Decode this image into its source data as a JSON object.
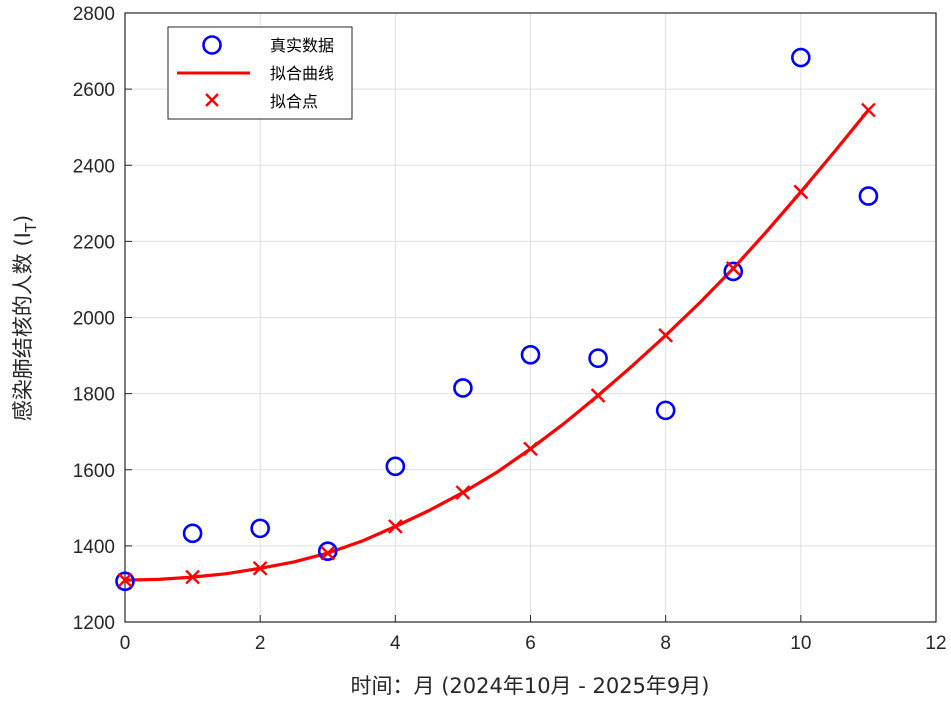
{
  "chart_data": {
    "type": "scatter",
    "xlabel": "时间：月 (2024年10月 -  2025年9月)",
    "ylabel": "感染肺结核的人数 (I",
    "ylabel_subscript": "T",
    "ylabel_suffix": ")",
    "xlim": [
      0,
      12
    ],
    "ylim": [
      1200,
      2800
    ],
    "xticks": [
      0,
      2,
      4,
      6,
      8,
      10,
      12
    ],
    "yticks": [
      1200,
      1400,
      1600,
      1800,
      2000,
      2200,
      2400,
      2600,
      2800
    ],
    "grid": true,
    "legend_position": "top-left",
    "series": [
      {
        "name": "真实数据",
        "kind": "marker-circle",
        "color": "#0000ff",
        "x": [
          0,
          1,
          2,
          3,
          4,
          5,
          6,
          7,
          8,
          9,
          10,
          11
        ],
        "y": [
          1307,
          1433,
          1446,
          1386,
          1609,
          1815,
          1902,
          1893,
          1756,
          2121,
          2683,
          2319
        ]
      },
      {
        "name": "拟合曲线",
        "kind": "line",
        "color": "#ff0000",
        "x": [
          0,
          0.5,
          1,
          1.5,
          2,
          2.5,
          3,
          3.5,
          4,
          4.5,
          5,
          5.5,
          6,
          6.5,
          7,
          7.5,
          8,
          8.5,
          9,
          9.5,
          10,
          10.5,
          11
        ],
        "y": [
          1310,
          1312,
          1318,
          1327,
          1341,
          1358,
          1381,
          1412,
          1451,
          1493,
          1540,
          1593,
          1655,
          1722,
          1795,
          1872,
          1953,
          2038,
          2129,
          2227,
          2330,
          2436,
          2545
        ]
      },
      {
        "name": "拟合点",
        "kind": "marker-x",
        "color": "#ff0000",
        "x": [
          0,
          1,
          2,
          3,
          4,
          5,
          6,
          7,
          8,
          9,
          10,
          11
        ],
        "y": [
          1310,
          1318,
          1341,
          1381,
          1451,
          1540,
          1655,
          1795,
          1953,
          2129,
          2330,
          2545
        ]
      }
    ]
  }
}
